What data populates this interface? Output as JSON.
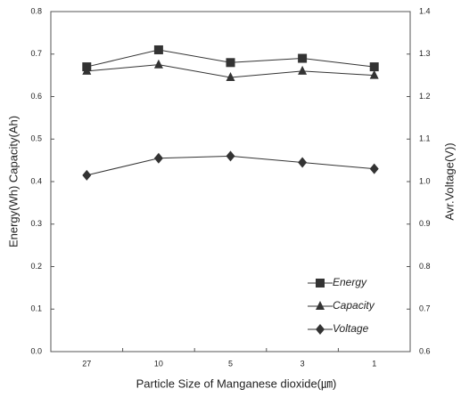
{
  "chart_data": {
    "type": "line",
    "xlabel": "Particle Size of Manganese dioxide(㎛)",
    "ylabel": "Energy(Wh) Capacity(Ah)",
    "y2label": "Avr.Voltage(V))",
    "categories": [
      "27",
      "10",
      "5",
      "3",
      "1"
    ],
    "series": [
      {
        "name": "Energy",
        "color": "#333333",
        "marker": "square",
        "values": [
          0.67,
          0.71,
          0.68,
          0.69,
          0.67
        ]
      },
      {
        "name": "Capacity",
        "color": "#333333",
        "marker": "triangle",
        "values": [
          0.66,
          0.675,
          0.645,
          0.66,
          0.65
        ]
      },
      {
        "name": "Voltage",
        "color": "#333333",
        "marker": "diamond",
        "axis": "y2",
        "values": [
          1.015,
          1.055,
          1.06,
          1.045,
          1.03
        ]
      }
    ],
    "ylim": [
      0,
      0.8
    ],
    "yticks": [
      {
        "value": 0,
        "label": "0.0"
      },
      0.1,
      0.2,
      0.3,
      0.4,
      0.5,
      0.6,
      0.7,
      0.8
    ],
    "y2lim": [
      0.6,
      1.4
    ],
    "y2ticks": [
      0.6,
      0.7,
      0.8,
      0.9,
      {
        "value": 1,
        "label": "1.0"
      },
      1.1,
      1.2,
      1.3,
      1.4
    ],
    "legend": "lower right"
  }
}
